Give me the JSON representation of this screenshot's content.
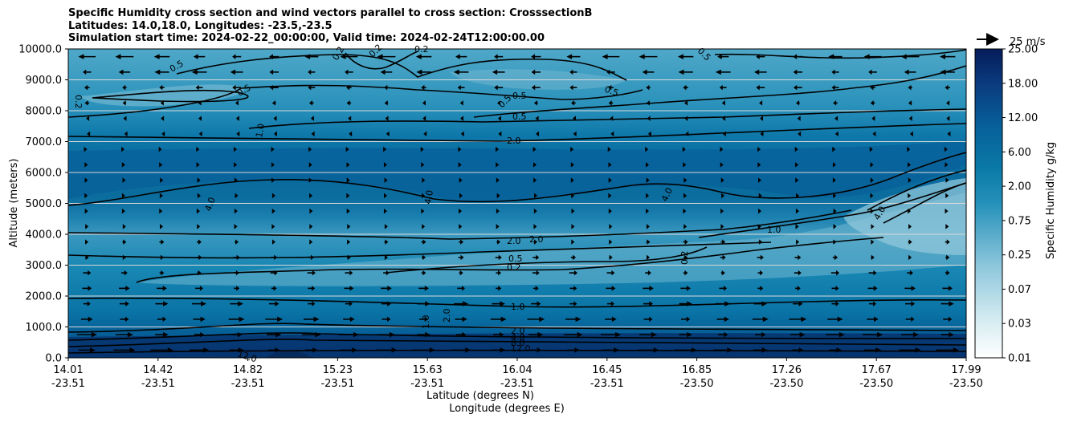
{
  "chart_data": {
    "type": "contourf-cross-section",
    "title_lines": [
      "Specific Humidity cross section and wind vectors parallel to cross section: CrosssectionB",
      "Latitudes: 14.0,18.0, Longitudes: -23.5,-23.5",
      "Simulation start time: 2024-02-22_00:00:00, Valid time: 2024-02-24T12:00:00.00"
    ],
    "ylabel": "Altitude (meters)",
    "xlabel_lat": "Latitude (degrees N)",
    "xlabel_lon": "Longitude (degrees E)",
    "ylim": [
      0,
      10000
    ],
    "yticks": [
      {
        "value": 0,
        "label": "0.0"
      },
      {
        "value": 1000,
        "label": "1000.0"
      },
      {
        "value": 2000,
        "label": "2000.0"
      },
      {
        "value": 3000,
        "label": "3000.0"
      },
      {
        "value": 4000,
        "label": "4000.0"
      },
      {
        "value": 5000,
        "label": "5000.0"
      },
      {
        "value": 6000,
        "label": "6000.0"
      },
      {
        "value": 7000,
        "label": "7000.0"
      },
      {
        "value": 8000,
        "label": "8000.0"
      },
      {
        "value": 9000,
        "label": "9000.0"
      },
      {
        "value": 10000,
        "label": "10000.0"
      }
    ],
    "xticks": [
      {
        "lat": "14.01",
        "lon": "-23.51"
      },
      {
        "lat": "14.42",
        "lon": "-23.51"
      },
      {
        "lat": "14.82",
        "lon": "-23.51"
      },
      {
        "lat": "15.23",
        "lon": "-23.51"
      },
      {
        "lat": "15.63",
        "lon": "-23.51"
      },
      {
        "lat": "16.04",
        "lon": "-23.51"
      },
      {
        "lat": "16.45",
        "lon": "-23.51"
      },
      {
        "lat": "16.85",
        "lon": "-23.50"
      },
      {
        "lat": "17.26",
        "lon": "-23.50"
      },
      {
        "lat": "17.67",
        "lon": "-23.50"
      },
      {
        "lat": "17.99",
        "lon": "-23.50"
      }
    ],
    "colorbar": {
      "label": "Specific Humidity g/kg",
      "levels": [
        "0.01",
        "0.03",
        "0.07",
        "0.25",
        "0.75",
        "2.00",
        "6.00",
        "12.00",
        "18.00",
        "25.00"
      ],
      "color_low": "#ffffff",
      "color_mid": "#0a80aa",
      "color_high": "#061c5a"
    },
    "quiver_key": "25 m/s",
    "contour_labels": [
      "0.2",
      "0.5",
      "1.0",
      "2.0",
      "4.0",
      "8.0",
      "12.0"
    ],
    "wind_columns": 24,
    "wind_rows": 21,
    "wind_profile": [
      {
        "alt": 250,
        "u": 20
      },
      {
        "alt": 1500,
        "u": 14
      },
      {
        "alt": 2500,
        "u": 8
      },
      {
        "alt": 3500,
        "u": 5
      },
      {
        "alt": 4500,
        "u": 2
      },
      {
        "alt": 5500,
        "u": 3
      },
      {
        "alt": 6500,
        "u": 1
      },
      {
        "alt": 7500,
        "u": -1
      },
      {
        "alt": 8500,
        "u": -5
      },
      {
        "alt": 9500,
        "u": -16
      }
    ]
  }
}
